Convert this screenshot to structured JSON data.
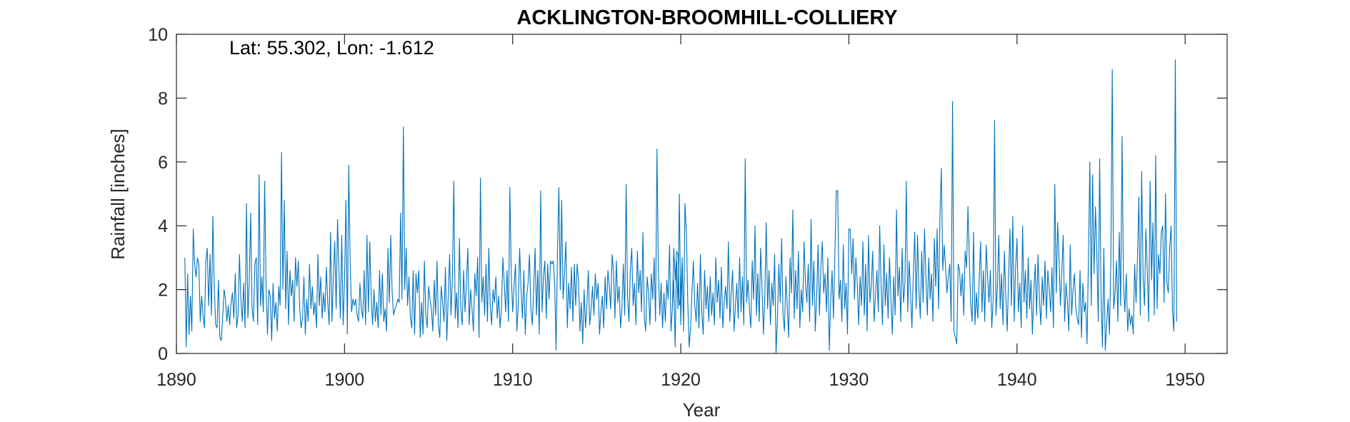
{
  "chart_data": {
    "type": "line",
    "title": "ACKLINGTON-BROOMHILL-COLLIERY",
    "annotation": "Lat: 55.302, Lon: -1.612",
    "xlabel": "Year",
    "ylabel": "Rainfall [inches]",
    "xlim": [
      1890,
      1952.5
    ],
    "ylim": [
      0,
      10
    ],
    "xticks": [
      1890,
      1900,
      1910,
      1920,
      1930,
      1940,
      1950
    ],
    "yticks": [
      0,
      2,
      4,
      6,
      8,
      10
    ],
    "grid": false,
    "line_color": "#0072BD",
    "series": [
      {
        "x_start": 1890.5,
        "x_step": 0.083333,
        "gaps": [
          [
            1918.6,
            1919.5
          ]
        ],
        "values": [
          3.0,
          0.2,
          2.5,
          0.6,
          1.8,
          0.7,
          3.9,
          2.8,
          2.4,
          3.0,
          2.8,
          1.0,
          1.8,
          1.2,
          0.8,
          2.9,
          3.3,
          1.5,
          3.1,
          1.2,
          4.3,
          2.1,
          0.9,
          0.8,
          2.3,
          0.5,
          0.4,
          1.1,
          2.0,
          1.7,
          1.0,
          1.5,
          0.9,
          1.6,
          1.9,
          1.1,
          2.5,
          0.8,
          1.2,
          3.1,
          1.7,
          1.0,
          2.2,
          0.8,
          4.7,
          1.1,
          2.3,
          4.4,
          1.4,
          1.0,
          2.8,
          3.0,
          0.9,
          5.6,
          1.5,
          2.4,
          1.3,
          5.4,
          2.1,
          0.6,
          2.0,
          1.8,
          0.4,
          2.2,
          1.1,
          1.6,
          0.7,
          2.1,
          1.5,
          6.3,
          2.0,
          4.8,
          1.4,
          3.2,
          0.9,
          2.6,
          1.8,
          2.3,
          1.0,
          3.0,
          2.1,
          2.9,
          1.4,
          0.8,
          1.1,
          2.4,
          0.6,
          1.7,
          1.0,
          2.8,
          1.4,
          2.1,
          1.2,
          1.6,
          0.8,
          3.1,
          1.5,
          2.4,
          1.1,
          1.9,
          1.3,
          2.7,
          1.6,
          0.9,
          3.8,
          1.0,
          2.4,
          3.5,
          1.4,
          4.2,
          2.6,
          1.1,
          3.7,
          0.9,
          2.3,
          4.8,
          0.6,
          5.9,
          2.9,
          1.3,
          1.7,
          1.5,
          1.7,
          1.2,
          1.0,
          2.2,
          1.4,
          1.1,
          2.6,
          0.9,
          3.7,
          1.3,
          3.5,
          1.8,
          0.9,
          2.0,
          1.0,
          1.6,
          0.8,
          2.6,
          1.2,
          2.5,
          1.0,
          1.4,
          0.7,
          3.3,
          1.6,
          3.7,
          1.9,
          1.2,
          1.4,
          1.5,
          1.7,
          1.6,
          4.4,
          1.7,
          7.1,
          2.0,
          3.3,
          1.5,
          2.4,
          1.1,
          0.8,
          2.6,
          0.6,
          2.5,
          1.9,
          2.6,
          0.5,
          1.6,
          0.6,
          2.9,
          1.2,
          0.8,
          2.1,
          1.7,
          1.4,
          0.7,
          2.3,
          1.2,
          2.9,
          0.9,
          0.5,
          2.1,
          1.6,
          1.0,
          2.7,
          0.4,
          1.8,
          3.1,
          1.2,
          2.4,
          5.4,
          1.1,
          1.9,
          0.8,
          3.6,
          1.4,
          0.9,
          2.6,
          1.3,
          2.2,
          3.3,
          0.9,
          2.0,
          1.4,
          0.7,
          2.5,
          1.8,
          3.0,
          0.5,
          5.5,
          1.6,
          2.4,
          1.2,
          2.8,
          1.0,
          3.3,
          1.5,
          0.9,
          2.0,
          1.6,
          2.4,
          1.1,
          1.8,
          0.8,
          1.4,
          3.0,
          2.2,
          1.3,
          2.6,
          1.0,
          5.2,
          2.5,
          1.3,
          2.1,
          2.8,
          0.7,
          1.5,
          3.3,
          2.0,
          1.1,
          2.6,
          0.6,
          1.8,
          2.2,
          3.1,
          1.4,
          0.9,
          2.0,
          3.3,
          1.2,
          2.6,
          0.6,
          5.1,
          1.3,
          2.4,
          2.9,
          1.1,
          2.8,
          1.7,
          2.9,
          2.8,
          2.9,
          2.2,
          0.1,
          3.2,
          5.2,
          2.0,
          4.8,
          1.7,
          2.5,
          3.5,
          0.8,
          2.2,
          1.4,
          2.7,
          1.0,
          2.8,
          1.5,
          2.8,
          2.3,
          0.7,
          1.6,
          0.3,
          2.0,
          0.8,
          1.5,
          2.6,
          0.9,
          1.4,
          2.1,
          1.2,
          2.5,
          1.7,
          2.2,
          0.6,
          1.3,
          1.8,
          0.8,
          2.4,
          1.4,
          2.6,
          2.1,
          1.4,
          3.1,
          2.6,
          1.1,
          2.9,
          1.6,
          2.1,
          0.8,
          1.4,
          2.8,
          1.2,
          5.3,
          1.8,
          1.0,
          2.6,
          3.3,
          1.5,
          2.2,
          0.9,
          3.2,
          1.9,
          2.6,
          1.3,
          3.8,
          1.1,
          0.7,
          2.4,
          1.9,
          0.9,
          2.5,
          1.7,
          3.0,
          1.0,
          6.4,
          2.6,
          1.2,
          2.2,
          0.8,
          1.9,
          1.0,
          2.3,
          1.7,
          3.4,
          0.7,
          1.4,
          2.3,
          0.2,
          2.9,
          1.4,
          5.0,
          0.9,
          2.6
        ],
        "values_after_gap": [
          1.4,
          3.3,
          2.3,
          3.2,
          3.1,
          1.5,
          1.8,
          3.0,
          0.7,
          4.7,
          3.8,
          1.6,
          0.2,
          0.8,
          1.9,
          2.9,
          1.5,
          1.0,
          2.2,
          0.8,
          3.1,
          1.3,
          0.6,
          2.6,
          1.4,
          2.1,
          1.0,
          2.4,
          1.2,
          1.9,
          0.9,
          3.0,
          1.6,
          2.3,
          1.1,
          2.7,
          0.8,
          1.6,
          2.1,
          1.4,
          3.5,
          1.0,
          1.9,
          2.6,
          0.7,
          1.5,
          2.2,
          1.1,
          3.0,
          1.3,
          2.4,
          0.9,
          6.1,
          1.6,
          2.3,
          1.4,
          0.8,
          2.9,
          1.7,
          4.0,
          1.2,
          2.5,
          1.0,
          3.3,
          2.1,
          0.6,
          1.8,
          4.1,
          1.4,
          2.6,
          0.9,
          2.2,
          1.5,
          3.1,
          0.0,
          1.1,
          2.8,
          1.6,
          3.6,
          1.2,
          0.7,
          2.4,
          1.5,
          0.5,
          3.0,
          1.9,
          4.5,
          1.1,
          2.6,
          1.4,
          3.2,
          0.8,
          2.0,
          1.3,
          3.5,
          2.2,
          1.6,
          2.8,
          1.0,
          4.2,
          1.5,
          2.9,
          0.7,
          1.8,
          3.4,
          1.2,
          2.7,
          3.5,
          1.9,
          2.5,
          1.3,
          3.0,
          0.1,
          1.6,
          2.6,
          1.1,
          3.1,
          5.1,
          5.1,
          1.7,
          2.3,
          1.0,
          3.4,
          1.4,
          2.2,
          0.6,
          3.9,
          3.9,
          2.5,
          3.6,
          1.7,
          3.0,
          2.2,
          0.9,
          2.4,
          1.5,
          3.5,
          1.2,
          2.8,
          0.7,
          3.7,
          1.6,
          2.1,
          3.2,
          1.0,
          1.8,
          2.6,
          1.3,
          4.0,
          2.1,
          0.9,
          3.4,
          1.5,
          2.5,
          1.1,
          3.0,
          1.7,
          0.6,
          2.4,
          1.2,
          4.5,
          1.8,
          2.7,
          1.0,
          3.3,
          1.6,
          2.2,
          5.4,
          1.3,
          2.9,
          1.9,
          0.8,
          2.5,
          3.8,
          1.4,
          3.7,
          2.0,
          1.1,
          3.2,
          1.6,
          3.9,
          2.4,
          1.2,
          3.0,
          1.7,
          2.5,
          1.0,
          3.6,
          2.1,
          3.9,
          1.4,
          4.3,
          5.8,
          2.6,
          3.4,
          2.7,
          1.9,
          2.4,
          2.8,
          1.0,
          7.9,
          0.7,
          0.5,
          0.3,
          2.8,
          2.6,
          1.8,
          2.5,
          1.2,
          3.2,
          2.7,
          4.6,
          2.9,
          1.5,
          1.0,
          3.8,
          0.9,
          1.9,
          1.1,
          2.3,
          3.5,
          1.3,
          2.6,
          1.0,
          3.4,
          2.4,
          1.6,
          2.6,
          0.8,
          1.7,
          7.3,
          1.2,
          2.1,
          3.7,
          1.4,
          2.5,
          0.9,
          3.2,
          1.8,
          0.7,
          2.4,
          3.9,
          1.5,
          4.3,
          1.0,
          2.7,
          3.6,
          1.3,
          2.2,
          0.8,
          4.0,
          1.6,
          2.6,
          1.1,
          3.0,
          1.4,
          2.3,
          0.6,
          1.9,
          2.8,
          1.2,
          3.1,
          1.7,
          0.9,
          2.4,
          1.5,
          2.9,
          1.1,
          2.6,
          2.0,
          1.3,
          2.7,
          0.8,
          5.3,
          1.9,
          4.1,
          3.0,
          1.5,
          2.6,
          3.7,
          1.0,
          2.2,
          1.6,
          0.7,
          3.4,
          1.2,
          2.0,
          2.5,
          1.4,
          1.1,
          0.9,
          2.6,
          0.5,
          2.2,
          1.3,
          1.6,
          0.3,
          3.0,
          6.0,
          1.5,
          5.6,
          2.5,
          4.6,
          3.1,
          1.0,
          6.1,
          1.8,
          0.2,
          3.3,
          0.1,
          0.9,
          1.7,
          0.6,
          2.9,
          8.9,
          1.4,
          1.9,
          2.9,
          1.0,
          3.8,
          1.5,
          6.8,
          2.2,
          1.3,
          2.5,
          0.7,
          1.4,
          0.9,
          1.2,
          0.6,
          2.8,
          1.6,
          3.0,
          4.9,
          1.2,
          5.7,
          2.4,
          1.5,
          3.9,
          2.6,
          1.0,
          5.4,
          2.3,
          4.1,
          1.2,
          6.2,
          1.4,
          3.1,
          2.5,
          3.8,
          4.0,
          1.6,
          5.0,
          2.2,
          1.9,
          3.3,
          4.0,
          1.3,
          0.7,
          9.2,
          1.0
        ]
      }
    ]
  }
}
